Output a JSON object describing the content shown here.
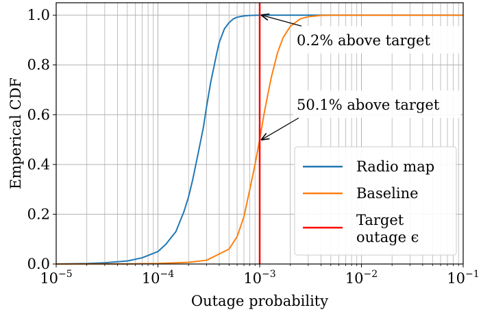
{
  "chart_data": {
    "type": "line",
    "x_scale": "log",
    "xlabel": "Outage probability",
    "ylabel": "Emperical CDF",
    "xlim": [
      1e-05,
      0.1
    ],
    "ylim": [
      0,
      1.05
    ],
    "grid": true,
    "x_tick_labels": [
      {
        "base": "10",
        "exp": "−5",
        "value": 1e-05
      },
      {
        "base": "10",
        "exp": "−4",
        "value": 0.0001
      },
      {
        "base": "10",
        "exp": "−3",
        "value": 0.001
      },
      {
        "base": "10",
        "exp": "−2",
        "value": 0.01
      },
      {
        "base": "10",
        "exp": "−1",
        "value": 0.1
      }
    ],
    "y_ticks": [
      0,
      0.2,
      0.4,
      0.6,
      0.8,
      1.0
    ],
    "y_tick_labels": [
      "0.0",
      "0.2",
      "0.4",
      "0.6",
      "0.8",
      "1.0"
    ],
    "series": [
      {
        "name": "Radio map",
        "color": "#1f77b4",
        "x": [
          1e-05,
          2e-05,
          3e-05,
          5e-05,
          7e-05,
          0.0001,
          0.00012,
          0.00015,
          0.00018,
          0.0002,
          0.00022,
          0.00025,
          0.00028,
          0.0003,
          0.00033,
          0.00035,
          0.00038,
          0.0004,
          0.00045,
          0.0005,
          0.00055,
          0.0006,
          0.0007,
          0.0008,
          0.001,
          0.002,
          0.01,
          0.1
        ],
        "y": [
          0.0,
          0.002,
          0.005,
          0.012,
          0.025,
          0.05,
          0.08,
          0.13,
          0.21,
          0.27,
          0.34,
          0.45,
          0.55,
          0.63,
          0.73,
          0.78,
          0.85,
          0.89,
          0.945,
          0.97,
          0.985,
          0.992,
          0.997,
          0.999,
          1.0,
          1.0,
          1.0,
          1.0
        ]
      },
      {
        "name": "Baseline",
        "color": "#ff7f0e",
        "x": [
          1e-05,
          5e-05,
          0.0001,
          0.0002,
          0.0003,
          0.0005,
          0.0006,
          0.0007,
          0.0008,
          0.0009,
          0.001,
          0.0011,
          0.0012,
          0.0013,
          0.0015,
          0.0017,
          0.002,
          0.0025,
          0.003,
          0.004,
          0.005,
          0.007,
          0.01,
          0.1
        ],
        "y": [
          0.0,
          0.0005,
          0.002,
          0.007,
          0.015,
          0.06,
          0.11,
          0.19,
          0.3,
          0.4,
          0.5,
          0.6,
          0.68,
          0.75,
          0.85,
          0.91,
          0.955,
          0.985,
          0.994,
          0.999,
          1.0,
          1.0,
          1.0,
          1.0
        ]
      }
    ],
    "vertical_lines": [
      {
        "name": "Target outage ϵ",
        "x": 0.001,
        "color": "#ff0000"
      }
    ],
    "legend": {
      "placement": "lower-right",
      "entries": [
        {
          "lines": [
            "Radio map"
          ],
          "color": "#1f77b4"
        },
        {
          "lines": [
            "Baseline"
          ],
          "color": "#ff7f0e"
        },
        {
          "lines": [
            "Target",
            "outage ϵ"
          ],
          "color": "#ff0000"
        }
      ]
    },
    "annotations": [
      {
        "text": "0.2% above target",
        "point_x": 0.001,
        "point_y": 1.0
      },
      {
        "text": "50.1% above target",
        "point_x": 0.001,
        "point_y": 0.5
      }
    ]
  }
}
